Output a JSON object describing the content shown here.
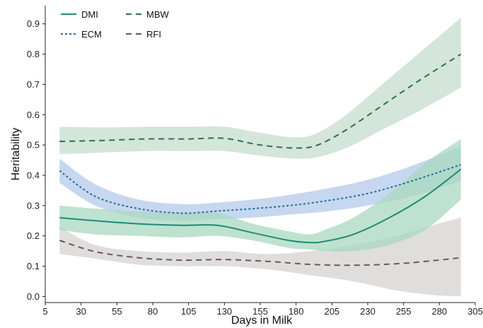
{
  "chart_data": {
    "type": "line",
    "xlabel": "Days in Milk",
    "ylabel": "Heritability",
    "xlim": [
      5,
      305
    ],
    "ylim": [
      -0.02,
      0.96
    ],
    "xticks": [
      5,
      30,
      55,
      80,
      105,
      130,
      155,
      180,
      205,
      230,
      255,
      280,
      305
    ],
    "yticks": [
      0.0,
      0.1,
      0.2,
      0.3,
      0.4,
      0.5,
      0.6,
      0.7,
      0.8,
      0.9
    ],
    "ytick_labels": [
      "0.0",
      "0.1",
      "0.2",
      "0.3",
      "0.4",
      "0.5",
      "0.6",
      "0.7",
      "0.8",
      "0.9"
    ],
    "grid": false,
    "legend_placement": "top-left",
    "series": [
      {
        "name": "DMI",
        "line_style": "solid",
        "color": "#1f8a74",
        "band_color": "#a8d8bf",
        "x": [
          15,
          40,
          70,
          100,
          125,
          150,
          175,
          190,
          200,
          220,
          245,
          270,
          295
        ],
        "y": [
          0.26,
          0.25,
          0.24,
          0.235,
          0.235,
          0.21,
          0.185,
          0.178,
          0.182,
          0.205,
          0.26,
          0.33,
          0.42
        ],
        "lower": [
          0.22,
          0.205,
          0.2,
          0.195,
          0.2,
          0.185,
          0.16,
          0.155,
          0.15,
          0.15,
          0.17,
          0.22,
          0.32
        ],
        "upper": [
          0.3,
          0.29,
          0.28,
          0.275,
          0.275,
          0.24,
          0.215,
          0.205,
          0.22,
          0.26,
          0.34,
          0.44,
          0.52
        ]
      },
      {
        "name": "ECM",
        "line_style": "dotted",
        "color": "#1f6f9c",
        "band_color": "#b3c9e9",
        "x": [
          15,
          40,
          70,
          100,
          125,
          150,
          175,
          200,
          230,
          260,
          295
        ],
        "y": [
          0.415,
          0.33,
          0.29,
          0.275,
          0.282,
          0.29,
          0.3,
          0.315,
          0.34,
          0.38,
          0.435
        ],
        "lower": [
          0.375,
          0.3,
          0.26,
          0.25,
          0.255,
          0.26,
          0.27,
          0.28,
          0.3,
          0.33,
          0.38
        ],
        "upper": [
          0.455,
          0.37,
          0.32,
          0.305,
          0.31,
          0.32,
          0.335,
          0.355,
          0.385,
          0.43,
          0.495
        ]
      },
      {
        "name": "MBW",
        "line_style": "dashed",
        "color": "#2f6e55",
        "band_color": "#c6dccd",
        "x": [
          15,
          45,
          75,
          105,
          130,
          155,
          180,
          195,
          215,
          240,
          265,
          295
        ],
        "y": [
          0.512,
          0.515,
          0.52,
          0.52,
          0.522,
          0.5,
          0.49,
          0.5,
          0.55,
          0.63,
          0.71,
          0.8
        ],
        "lower": [
          0.47,
          0.475,
          0.48,
          0.48,
          0.48,
          0.465,
          0.455,
          0.46,
          0.49,
          0.55,
          0.61,
          0.69
        ],
        "upper": [
          0.56,
          0.558,
          0.56,
          0.56,
          0.56,
          0.54,
          0.525,
          0.54,
          0.6,
          0.7,
          0.8,
          0.92
        ]
      },
      {
        "name": "RFI",
        "line_style": "dashed",
        "color": "#6a5a55",
        "band_color": "#d6d1d1",
        "x": [
          15,
          40,
          70,
          100,
          130,
          160,
          190,
          220,
          250,
          275,
          295
        ],
        "y": [
          0.185,
          0.148,
          0.128,
          0.12,
          0.122,
          0.116,
          0.106,
          0.103,
          0.108,
          0.118,
          0.128
        ],
        "lower": [
          0.14,
          0.125,
          0.105,
          0.1,
          0.1,
          0.09,
          0.07,
          0.05,
          0.02,
          0.005,
          0.0
        ],
        "upper": [
          0.23,
          0.17,
          0.15,
          0.145,
          0.15,
          0.14,
          0.15,
          0.17,
          0.2,
          0.235,
          0.26
        ]
      }
    ]
  }
}
